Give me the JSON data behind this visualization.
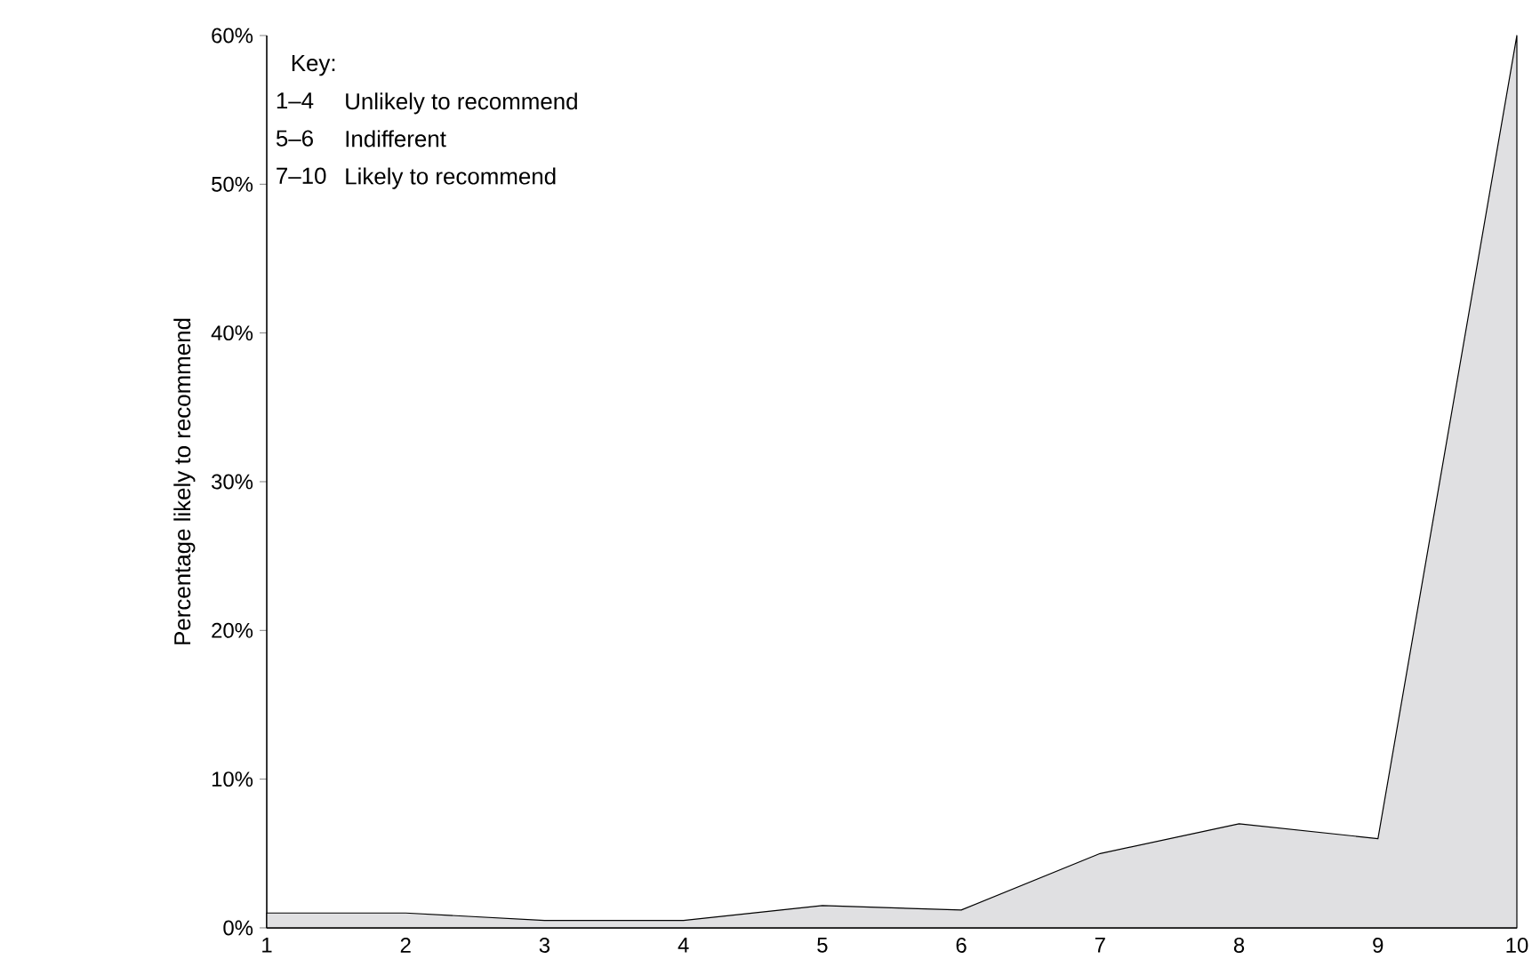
{
  "chart_data": {
    "type": "area",
    "ylabel": "Percentage likely to recommend",
    "x": [
      1,
      2,
      3,
      4,
      5,
      6,
      7,
      8,
      9,
      10
    ],
    "values": [
      1,
      1,
      0.5,
      0.5,
      1.5,
      1.2,
      5,
      7,
      6,
      60
    ],
    "color": "#e0e0e2",
    "xlim": [
      1,
      10
    ],
    "xticks": [
      1,
      2,
      3,
      4,
      5,
      6,
      7,
      8,
      9,
      10
    ],
    "ylim": [
      0,
      60
    ],
    "yticks": [
      {
        "value": 0,
        "label": "0%"
      },
      {
        "value": 10,
        "label": "10%"
      },
      {
        "value": 20,
        "label": "20%"
      },
      {
        "value": 30,
        "label": "30%"
      },
      {
        "value": 40,
        "label": "40%"
      },
      {
        "value": 50,
        "label": "50%"
      },
      {
        "value": 60,
        "label": "60%"
      }
    ],
    "grid": false,
    "annotations": [
      "Key:",
      "1–4",
      "Unlikely to recommend",
      "5–6",
      "Indifferent",
      "7–10",
      "Likely to recommend"
    ]
  }
}
